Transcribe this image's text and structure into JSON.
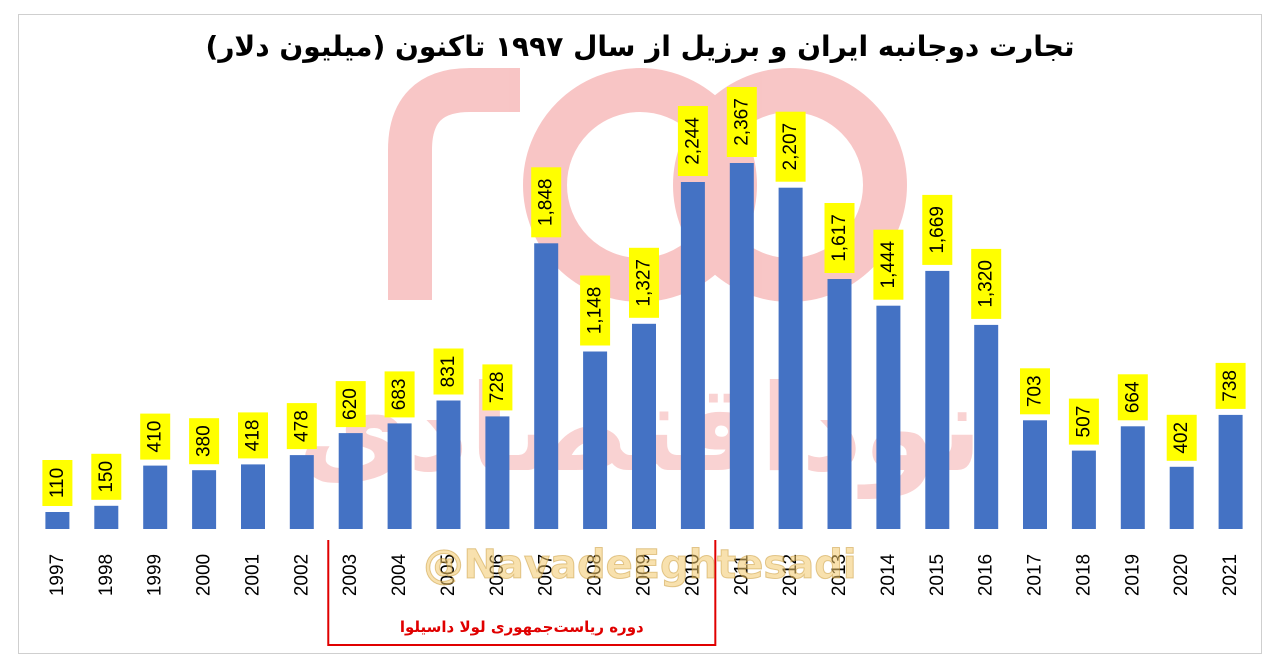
{
  "chart_data": {
    "type": "bar",
    "title": "تجارت دوجانبه ایران و برزیل از سال ۱۹۹۷ تاکنون (میلیون دلار)",
    "categories": [
      "1997",
      "1998",
      "1999",
      "2000",
      "2001",
      "2002",
      "2003",
      "2004",
      "2005",
      "2006",
      "2007",
      "2008",
      "2009",
      "2010",
      "2011",
      "2012",
      "2013",
      "2014",
      "2015",
      "2016",
      "2017",
      "2018",
      "2019",
      "2020",
      "2021"
    ],
    "values": [
      110,
      150,
      410,
      380,
      418,
      478,
      620,
      683,
      831,
      728,
      1848,
      1148,
      1327,
      2244,
      2367,
      2207,
      1617,
      1444,
      1669,
      1320,
      703,
      507,
      664,
      402,
      738
    ],
    "data_labels": [
      "110",
      "150",
      "410",
      "380",
      "418",
      "478",
      "620",
      "683",
      "831",
      "728",
      "1,848",
      "1,148",
      "1,327",
      "2,244",
      "2,367",
      "2,207",
      "1,617",
      "1,444",
      "1,669",
      "1,320",
      "703",
      "507",
      "664",
      "402",
      "738"
    ],
    "ylim": [
      0,
      2600
    ],
    "grid": false,
    "bar_color": "#4472c4",
    "label_bg_color": "#ffff00",
    "annotation": {
      "text": "دوره ریاست‌جمهوری لولا داسیلوا",
      "color": "#e00000",
      "from_category": "2003",
      "to_category": "2010"
    }
  },
  "watermark": {
    "brand_text": "نوداقتصادی",
    "handle_text": "@NavadeEghtesadi",
    "color": "#f08080"
  }
}
